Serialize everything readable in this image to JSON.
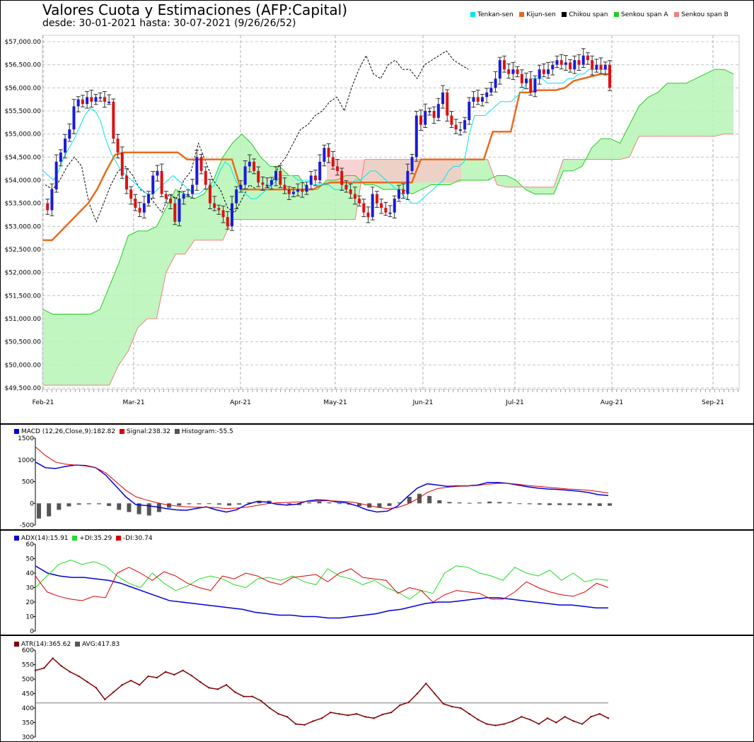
{
  "header": {
    "title": "Valores Cuota y Estimaciones (AFP:Capital)",
    "subtitle": "desde: 30-01-2021 hasta: 30-07-2021 (9/26/26/52)"
  },
  "legend_main": [
    {
      "label": "Tenkan-sen",
      "color": "#00e5ee"
    },
    {
      "label": "Kijun-sen",
      "color": "#e86b1c"
    },
    {
      "label": "Chikou span",
      "color": "#000000"
    },
    {
      "label": "Senkou span A",
      "color": "#22cc22"
    },
    {
      "label": "Senkou span B",
      "color": "#f08080"
    }
  ],
  "legend_macd": [
    {
      "label": "MACD (12,26,Close,9):182.82",
      "color": "#0000dd"
    },
    {
      "label": "Signal:238.32",
      "color": "#dd0000"
    },
    {
      "label": "Histogram:-55.5",
      "color": "#555555"
    }
  ],
  "legend_adx": [
    {
      "label": "ADX(14):15.91",
      "color": "#0000dd"
    },
    {
      "label": "+DI:35.29",
      "color": "#22dd22"
    },
    {
      "label": "-DI:30.74",
      "color": "#dd0000"
    }
  ],
  "legend_atr": [
    {
      "label": "ATR(14):365.62",
      "color": "#800000"
    },
    {
      "label": "AVG:417.83",
      "color": "#555555"
    }
  ],
  "chart_data": [
    {
      "type": "candlestick",
      "title": "Valores Cuota y Estimaciones (AFP:Capital)",
      "ylim": [
        49500,
        57000
      ],
      "y_ticks": [
        49500,
        50000,
        50500,
        51000,
        51500,
        52000,
        52500,
        53000,
        53500,
        54000,
        54500,
        55000,
        55500,
        56000,
        56500,
        57000
      ],
      "y_tick_labels": [
        "$49,500.00",
        "$50,000.00",
        "$50,500.00",
        "$51,000.00",
        "$51,500.00",
        "$52,000.00",
        "$52,500.00",
        "$53,000.00",
        "$53,500.00",
        "$54,000.00",
        "$54,500.00",
        "$55,000.00",
        "$55,500.00",
        "$56,000.00",
        "$56,500.00",
        "$57,000.00"
      ],
      "x_labels": [
        "Feb-21",
        "Mar-21",
        "Apr-21",
        "May-21",
        "Jun-21",
        "Jul-21",
        "Aug-21",
        "Sep-21"
      ],
      "close": [
        53500,
        53350,
        53800,
        54400,
        54600,
        54900,
        55100,
        55600,
        55750,
        55650,
        55800,
        55700,
        55800,
        55800,
        55700,
        55700,
        54900,
        54600,
        54100,
        53800,
        53600,
        53400,
        53300,
        53500,
        53700,
        54100,
        54200,
        53700,
        53600,
        53500,
        53100,
        53600,
        53700,
        53700,
        53900,
        54500,
        54200,
        53900,
        53500,
        53400,
        53350,
        53200,
        53000,
        53500,
        53800,
        53900,
        54300,
        54400,
        54200,
        53950,
        53900,
        53900,
        54000,
        54200,
        53900,
        53800,
        53700,
        53750,
        53800,
        53750,
        53900,
        54100,
        54000,
        54400,
        54700,
        54500,
        54300,
        54200,
        53900,
        53800,
        53700,
        53600,
        53500,
        53300,
        53200,
        53700,
        53500,
        53400,
        53300,
        53300,
        53600,
        53800,
        53700,
        54200,
        54500,
        55400,
        55200,
        55500,
        55500,
        55350,
        55650,
        55900,
        55400,
        55200,
        55100,
        55100,
        55300,
        55700,
        55800,
        55700,
        55800,
        55900,
        56000,
        56200,
        56600,
        56400,
        56300,
        56400,
        56300,
        56100,
        56200,
        55900,
        56200,
        56400,
        56300,
        56400,
        56500,
        56600,
        56500,
        56550,
        56400,
        56600,
        56500,
        56700,
        56600,
        56400,
        56500,
        56400,
        56500,
        56000
      ],
      "tenkan": [
        54200,
        54100,
        54000,
        54200,
        54500,
        54700,
        54900,
        55150,
        55400,
        55550,
        55500,
        55300,
        54900,
        54600,
        54400,
        54200,
        54100,
        54000,
        53900,
        53800,
        53700,
        53700,
        53800,
        53900,
        54000,
        54100,
        54000,
        53900,
        53800,
        53700,
        53700,
        53800,
        53800,
        53900,
        54200,
        54400,
        54300,
        54000,
        53800,
        53700,
        53600,
        53600,
        53700,
        53800,
        53900,
        54000,
        54100,
        54100,
        54100,
        54000,
        54000,
        54000,
        53900,
        53900,
        53900,
        53900,
        53800,
        53800,
        53800,
        53900,
        54000,
        54000,
        54100,
        54200,
        54200,
        54100,
        54000,
        53900,
        53800,
        53700,
        53600,
        53500,
        53500,
        53600,
        53700,
        53800,
        53900,
        54000,
        54200,
        54300,
        54300,
        54400,
        55000,
        55400,
        55400,
        55400,
        55500,
        55600,
        55700,
        55700,
        55700,
        55800,
        55900,
        56100,
        56200,
        56200,
        56200,
        56100,
        56100,
        56100,
        56100,
        56200,
        56200,
        56300,
        56300,
        56400,
        56400,
        56400,
        56400,
        56400
      ],
      "kijun": [
        52700,
        52700,
        52900,
        53100,
        53300,
        53500,
        53800,
        54200,
        54550,
        54600,
        54600,
        54600,
        54600,
        54600,
        54600,
        54600,
        54450,
        54450,
        54450,
        54450,
        54450,
        54450,
        53800,
        53800,
        53800,
        53800,
        53800,
        53800,
        53800,
        53800,
        53800,
        53900,
        53950,
        53950,
        53950,
        53950,
        53950,
        53950,
        53950,
        53950,
        53950,
        53950,
        54450,
        54450,
        54450,
        54450,
        54450,
        54450,
        54450,
        54450,
        55050,
        55050,
        55050,
        55900,
        55900,
        55950,
        55950,
        55950,
        56000,
        56150,
        56200,
        56250,
        56300,
        56300
      ],
      "chikou": [
        53900,
        53800,
        54000,
        54300,
        54500,
        54300,
        53500,
        53100,
        53500,
        53900,
        54200,
        54300,
        54100,
        53800,
        53700,
        53500,
        53300,
        53700,
        53600,
        54000,
        54200,
        54800,
        54400,
        54000,
        53800,
        53400,
        53300,
        53600,
        53900,
        53800,
        53800,
        53900,
        54300,
        54500,
        54800,
        55100,
        55200,
        55400,
        55500,
        55700,
        55800,
        55500,
        56000,
        56400,
        56700,
        56300,
        56200,
        56500,
        56600,
        56400,
        56400,
        56200,
        56500,
        56600,
        56700,
        56800,
        56600,
        56500,
        56400
      ],
      "senkou_a": [
        51200,
        51100,
        51100,
        51100,
        51100,
        51100,
        51200,
        51700,
        52200,
        52800,
        52900,
        52900,
        53000,
        53400,
        53800,
        53700,
        53600,
        53700,
        54000,
        54500,
        54800,
        55000,
        54800,
        54500,
        54300,
        54300,
        54100,
        54100,
        53800,
        53800,
        54000,
        54000,
        54100,
        54100,
        53900,
        53900,
        53800,
        53800,
        53800,
        53700,
        53800,
        53900,
        53900,
        53900,
        54000,
        54000,
        54000,
        54000,
        54100,
        54100,
        54000,
        53800,
        53700,
        53700,
        53700,
        54200,
        54200,
        54300,
        54700,
        54900,
        54900,
        54800,
        55200,
        55600,
        55800,
        55900,
        56100,
        56100,
        56100,
        56200,
        56300,
        56400,
        56400,
        56300
      ]
    },
    {
      "type": "line",
      "title": "MACD (12,26,Close,9)",
      "ylim": [
        -500,
        1500
      ],
      "y_ticks": [
        -500,
        0,
        500,
        1000,
        1500
      ],
      "series": [
        {
          "name": "MACD",
          "values": [
            950,
            820,
            800,
            850,
            880,
            870,
            820,
            650,
            400,
            150,
            -30,
            -50,
            -80,
            -120,
            -150,
            -160,
            -120,
            -80,
            -150,
            -200,
            -150,
            -30,
            40,
            30,
            -20,
            -40,
            -20,
            50,
            80,
            70,
            30,
            10,
            -60,
            -150,
            -200,
            -180,
            -70,
            150,
            350,
            450,
            420,
            390,
            400,
            400,
            420,
            480,
            480,
            460,
            420,
            380,
            350,
            330,
            320,
            300,
            280,
            250,
            200,
            180
          ]
        },
        {
          "name": "Signal",
          "values": [
            1300,
            1100,
            950,
            900,
            880,
            860,
            820,
            700,
            500,
            300,
            150,
            80,
            20,
            -30,
            -60,
            -80,
            -90,
            -90,
            -100,
            -120,
            -110,
            -90,
            -50,
            -10,
            10,
            20,
            30,
            40,
            50,
            60,
            50,
            40,
            10,
            -40,
            -90,
            -120,
            -100,
            -20,
            100,
            250,
            340,
            370,
            390,
            400,
            410,
            440,
            460,
            460,
            440,
            410,
            390,
            370,
            350,
            330,
            320,
            300,
            270,
            240
          ]
        },
        {
          "name": "Histogram",
          "values": [
            -350,
            -300,
            -150,
            -70,
            -30,
            -20,
            -20,
            -60,
            -150,
            -200,
            -250,
            -280,
            -200,
            -100,
            -50,
            -20,
            -20,
            -10,
            -30,
            -50,
            -30,
            20,
            60,
            60,
            20,
            -20,
            -40,
            20,
            40,
            20,
            -10,
            -30,
            -60,
            -100,
            -100,
            -60,
            20,
            150,
            220,
            170,
            70,
            30,
            20,
            10,
            20,
            40,
            30,
            20,
            -10,
            -20,
            -30,
            -40,
            -40,
            -40,
            -40,
            -50,
            -60,
            -55
          ]
        }
      ]
    },
    {
      "type": "line",
      "title": "ADX(14)",
      "ylim": [
        0,
        60
      ],
      "y_ticks": [
        0,
        10,
        20,
        30,
        40,
        50,
        60
      ],
      "series": [
        {
          "name": "ADX",
          "values": [
            45,
            40,
            38,
            37,
            37,
            36,
            35,
            33,
            30,
            27,
            24,
            21,
            20,
            19,
            18,
            17,
            16,
            15,
            13,
            12,
            11,
            11,
            10,
            10,
            9,
            9,
            10,
            11,
            12,
            14,
            15,
            17,
            19,
            20,
            20,
            21,
            22,
            23,
            23,
            22,
            21,
            20,
            19,
            18,
            18,
            17,
            16,
            16
          ]
        },
        {
          "name": "+DI",
          "values": [
            30,
            38,
            46,
            49,
            46,
            48,
            45,
            38,
            33,
            30,
            40,
            33,
            28,
            31,
            36,
            38,
            36,
            32,
            30,
            36,
            37,
            35,
            38,
            34,
            32,
            43,
            38,
            36,
            32,
            35,
            30,
            27,
            22,
            28,
            26,
            40,
            45,
            44,
            40,
            38,
            35,
            44,
            40,
            38,
            42,
            35,
            40,
            34,
            36,
            35
          ]
        },
        {
          "name": "-DI",
          "values": [
            38,
            27,
            24,
            22,
            21,
            24,
            23,
            40,
            44,
            40,
            35,
            41,
            38,
            33,
            30,
            28,
            38,
            36,
            40,
            38,
            34,
            32,
            37,
            38,
            39,
            34,
            40,
            43,
            37,
            36,
            35,
            26,
            30,
            28,
            20,
            25,
            28,
            27,
            26,
            22,
            22,
            27,
            34,
            30,
            27,
            25,
            24,
            27,
            33,
            30
          ]
        }
      ]
    },
    {
      "type": "line",
      "title": "ATR(14)",
      "ylim": [
        300,
        600
      ],
      "y_ticks": [
        300,
        350,
        400,
        450,
        500,
        550,
        600
      ],
      "series": [
        {
          "name": "ATR",
          "values": [
            530,
            538,
            572,
            545,
            525,
            510,
            490,
            470,
            430,
            455,
            480,
            495,
            480,
            510,
            505,
            525,
            515,
            530,
            512,
            490,
            470,
            465,
            480,
            455,
            440,
            440,
            425,
            400,
            380,
            370,
            345,
            342,
            355,
            365,
            385,
            380,
            375,
            380,
            370,
            365,
            378,
            385,
            410,
            420,
            450,
            485,
            450,
            415,
            405,
            400,
            380,
            360,
            345,
            340,
            345,
            355,
            370,
            360,
            345,
            365,
            350,
            370,
            355,
            345,
            370,
            380,
            365
          ]
        },
        {
          "name": "AVG",
          "values": [
            417.83
          ]
        }
      ]
    }
  ]
}
